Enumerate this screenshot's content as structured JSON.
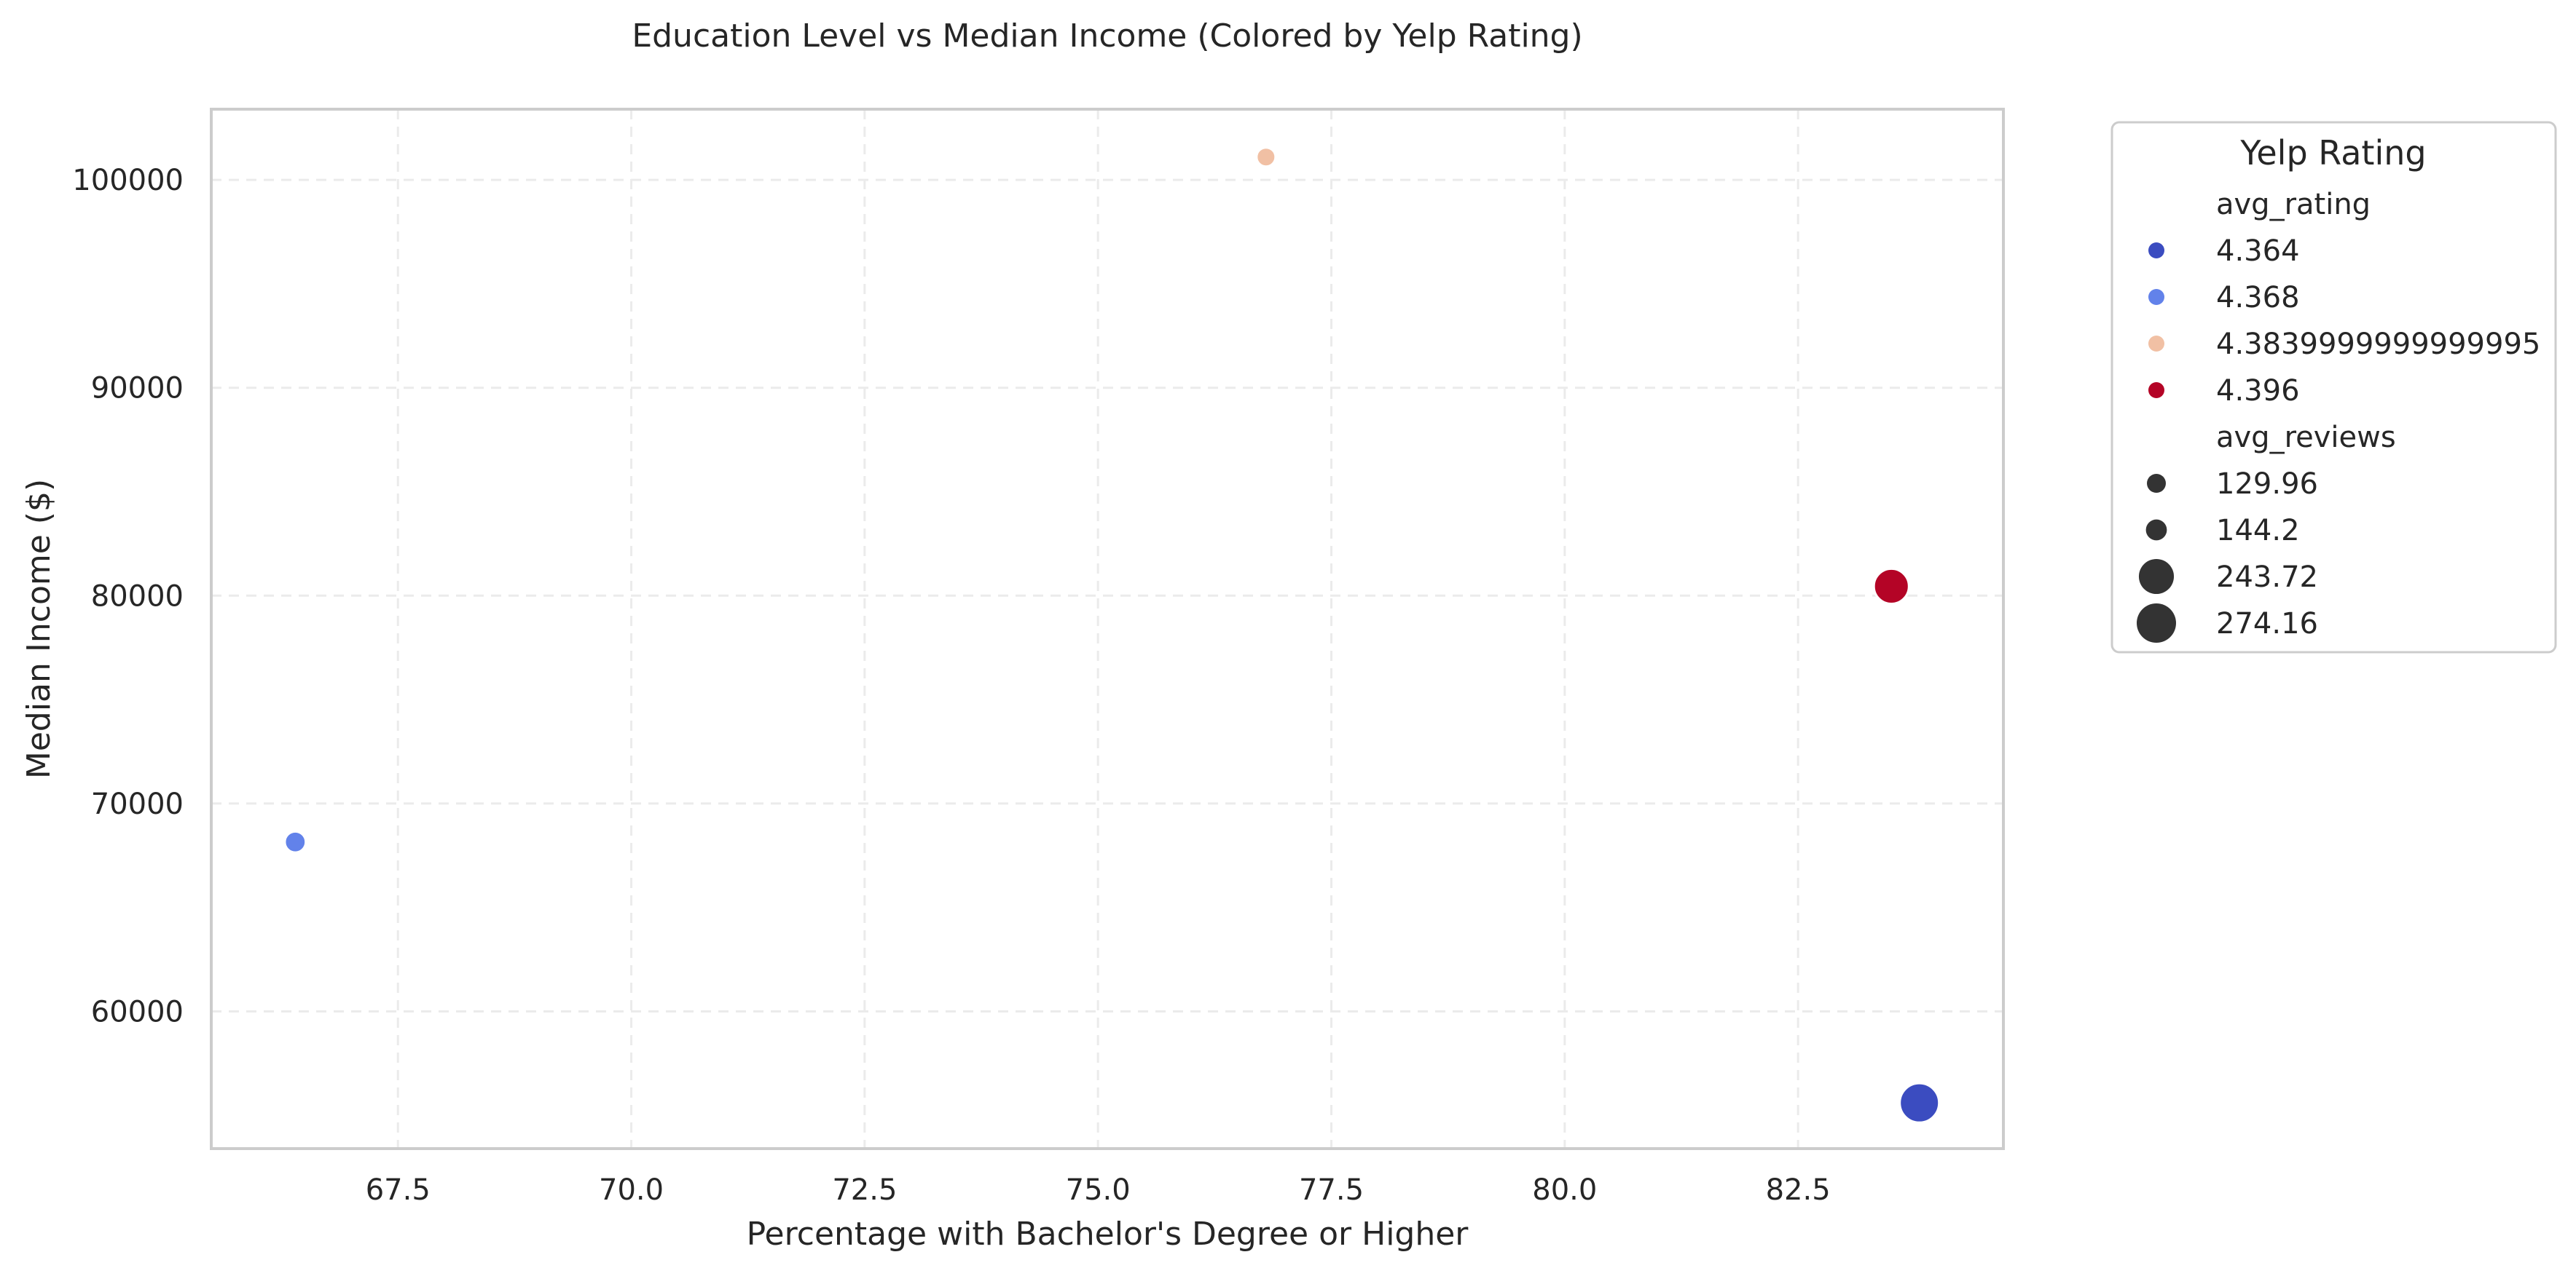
{
  "chart_data": {
    "type": "scatter",
    "title": "Education Level vs Median Income (Colored by Yelp Rating)",
    "xlabel": "Percentage with Bachelor's Degree or Higher",
    "ylabel": "Median Income ($)",
    "xlim": [
      65.5,
      84.7
    ],
    "ylim": [
      53400,
      103400
    ],
    "xticks": [
      "67.5",
      "70.0",
      "72.5",
      "75.0",
      "77.5",
      "80.0",
      "82.5"
    ],
    "yticks": [
      "60000",
      "70000",
      "80000",
      "90000",
      "100000"
    ],
    "grid": true,
    "legend": {
      "title": "Yelp Rating",
      "placement": "outside-right",
      "hue_title": "avg_rating",
      "hue_entries": [
        {
          "label": "4.364",
          "color": "#3b4cc0"
        },
        {
          "label": "4.368",
          "color": "#6282ea"
        },
        {
          "label": "4.3839999999999995",
          "color": "#f1c0a4"
        },
        {
          "label": "4.396",
          "color": "#b40426"
        }
      ],
      "size_title": "avg_reviews",
      "size_entries": [
        {
          "label": "129.96",
          "size": 129.96
        },
        {
          "label": "144.2",
          "size": 144.2
        },
        {
          "label": "243.72",
          "size": 243.72
        },
        {
          "label": "274.16",
          "size": 274.16
        }
      ],
      "size_marker_color": "#333333"
    },
    "points": [
      {
        "x": 66.4,
        "y": 68150,
        "rating": 4.368,
        "reviews": 144.2,
        "color": "#6282ea"
      },
      {
        "x": 76.8,
        "y": 101100,
        "rating": 4.3839999999999995,
        "reviews": 129.96,
        "color": "#f1c0a4"
      },
      {
        "x": 83.5,
        "y": 80450,
        "rating": 4.396,
        "reviews": 243.72,
        "color": "#b40426"
      },
      {
        "x": 83.8,
        "y": 55600,
        "rating": 4.364,
        "reviews": 274.16,
        "color": "#3b4cc0"
      }
    ]
  }
}
